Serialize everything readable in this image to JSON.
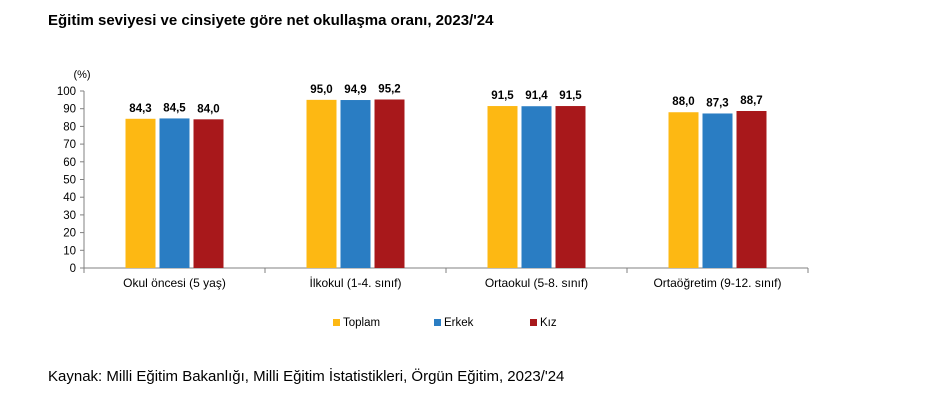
{
  "title": "Eğitim seviyesi ve cinsiyete göre net okullaşma oranı, 2023/'24",
  "source": "Kaynak: Milli Eğitim Bakanlığı, Milli Eğitim İstatistikleri, Örgün Eğitim, 2023/'24",
  "chart_data": {
    "type": "bar",
    "title": "Eğitim seviyesi ve cinsiyete göre net okullaşma oranı, 2023/'24",
    "unit_label": "(%)",
    "categories": [
      "Okul öncesi (5 yaş)",
      "İlkokul (1-4. sınıf)",
      "Ortaokul (5-8. sınıf)",
      "Ortaöğretim (9-12. sınıf)"
    ],
    "series": [
      {
        "name": "Toplam",
        "color": "#FDB813",
        "values": [
          84.3,
          95.0,
          91.5,
          88.0
        ],
        "labels": [
          "84,3",
          "95,0",
          "91,5",
          "88,0"
        ]
      },
      {
        "name": "Erkek",
        "color": "#2A7DC3",
        "values": [
          84.5,
          94.9,
          91.4,
          87.3
        ],
        "labels": [
          "84,5",
          "94,9",
          "91,4",
          "87,3"
        ]
      },
      {
        "name": "Kız",
        "color": "#A8181B",
        "values": [
          84.0,
          95.2,
          91.5,
          88.7
        ],
        "labels": [
          "84,0",
          "95,2",
          "91,5",
          "88,7"
        ]
      }
    ],
    "yticks": [
      "0",
      "10",
      "20",
      "30",
      "40",
      "50",
      "60",
      "70",
      "80",
      "90",
      "100"
    ],
    "ylim": [
      0,
      100
    ],
    "grid": false,
    "legend_position": "bottom"
  }
}
